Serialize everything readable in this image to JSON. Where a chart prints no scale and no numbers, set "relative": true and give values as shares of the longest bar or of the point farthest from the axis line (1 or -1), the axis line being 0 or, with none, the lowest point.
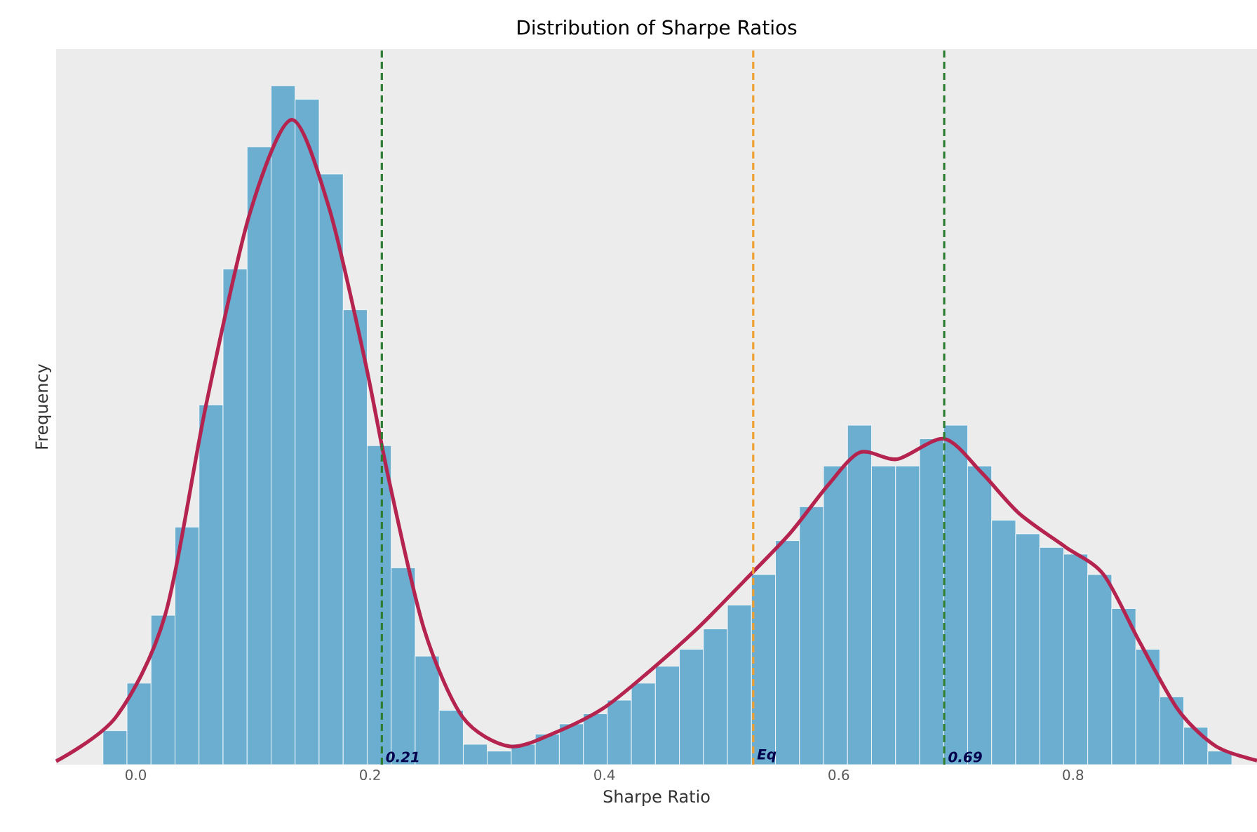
{
  "chart_data": {
    "type": "histogram",
    "title": "Distribution of Sharpe Ratios",
    "xlabel": "Sharpe Ratio",
    "ylabel": "Frequency",
    "relative": true,
    "bins": [
      -0.028,
      -0.0075,
      0.013,
      0.0335,
      0.054,
      0.0745,
      0.095,
      0.1155,
      0.136,
      0.1565,
      0.177,
      0.1975,
      0.218,
      0.2385,
      0.259,
      0.2795,
      0.3,
      0.3205,
      0.341,
      0.3615,
      0.382,
      0.4025,
      0.423,
      0.4435,
      0.464,
      0.4845,
      0.505,
      0.5255,
      0.546,
      0.5665,
      0.587,
      0.6075,
      0.628,
      0.6485,
      0.669,
      0.6895,
      0.71,
      0.7305,
      0.751,
      0.7715,
      0.792,
      0.8125,
      0.833,
      0.8535,
      0.874,
      0.8945,
      0.915,
      0.9355
    ],
    "values": [
      0.05,
      0.12,
      0.22,
      0.35,
      0.53,
      0.73,
      0.91,
      1.0,
      0.98,
      0.87,
      0.67,
      0.47,
      0.29,
      0.16,
      0.08,
      0.03,
      0.02,
      0.03,
      0.045,
      0.06,
      0.075,
      0.095,
      0.12,
      0.145,
      0.17,
      0.2,
      0.235,
      0.28,
      0.33,
      0.38,
      0.44,
      0.5,
      0.44,
      0.44,
      0.48,
      0.5,
      0.44,
      0.36,
      0.34,
      0.32,
      0.31,
      0.28,
      0.23,
      0.17,
      0.1,
      0.055,
      0.02
    ],
    "color": "#6baed0",
    "series": [
      {
        "type": "line",
        "color": "#b5234f",
        "x": [
          -0.068,
          -0.017,
          0.025,
          0.06,
          0.097,
          0.133,
          0.165,
          0.195,
          0.216,
          0.246,
          0.279,
          0.319,
          0.359,
          0.399,
          0.438,
          0.479,
          0.519,
          0.558,
          0.59,
          0.618,
          0.65,
          0.69,
          0.722,
          0.754,
          0.794,
          0.826,
          0.857,
          0.89,
          0.922,
          0.957
        ],
        "values": [
          0.005,
          0.07,
          0.22,
          0.53,
          0.81,
          0.95,
          0.82,
          0.6,
          0.42,
          0.2,
          0.07,
          0.027,
          0.048,
          0.083,
          0.137,
          0.2,
          0.27,
          0.34,
          0.41,
          0.46,
          0.45,
          0.48,
          0.43,
          0.37,
          0.32,
          0.28,
          0.18,
          0.08,
          0.027,
          0.006
        ]
      }
    ],
    "ref_lines": [
      {
        "axis": "x",
        "value": 0.21,
        "label": "0.21",
        "color": "#2e7d32",
        "line_style": "dashed"
      },
      {
        "axis": "x",
        "value": 0.527,
        "label": "Eq",
        "color": "#f0a030",
        "line_style": "dashed"
      },
      {
        "axis": "x",
        "value": 0.69,
        "label": "0.69",
        "color": "#2e7d32",
        "line_style": "dashed"
      }
    ],
    "xlim": [
      -0.068,
      0.957
    ],
    "xticks": [
      {
        "value": 0,
        "label": "0.0"
      },
      0.2,
      0.4,
      0.6,
      0.8
    ],
    "grid": false
  }
}
